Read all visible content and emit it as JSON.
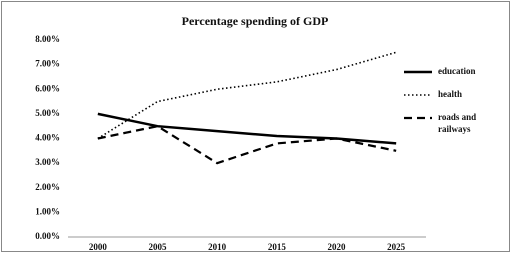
{
  "chart_data": {
    "type": "line",
    "title": "Percentage spending of GDP",
    "categories": [
      "2000",
      "2005",
      "2010",
      "2015",
      "2020",
      "2025"
    ],
    "series": [
      {
        "name": "education",
        "color": "#000000",
        "dash": "solid",
        "values": [
          5.0,
          4.5,
          4.3,
          4.1,
          4.0,
          3.8
        ]
      },
      {
        "name": "health",
        "color": "#000000",
        "dash": "dotted",
        "values": [
          4.0,
          5.5,
          6.0,
          6.3,
          6.8,
          7.5
        ]
      },
      {
        "name": "roads and railways",
        "color": "#000000",
        "dash": "dashed",
        "values": [
          4.0,
          4.5,
          3.0,
          3.8,
          4.0,
          3.5
        ]
      }
    ],
    "ylim": [
      0,
      8
    ],
    "yticks": [
      {
        "value": 0,
        "label": "0.00%"
      },
      {
        "value": 1,
        "label": "1.00%"
      },
      {
        "value": 2,
        "label": "2.00%"
      },
      {
        "value": 3,
        "label": "3.00%"
      },
      {
        "value": 4,
        "label": "4.00%"
      },
      {
        "value": 5,
        "label": "5.00%"
      },
      {
        "value": 6,
        "label": "6.00%"
      },
      {
        "value": 7,
        "label": "7.00%"
      },
      {
        "value": 8,
        "label": "8.00%"
      }
    ],
    "grid": false,
    "legend": "right"
  }
}
